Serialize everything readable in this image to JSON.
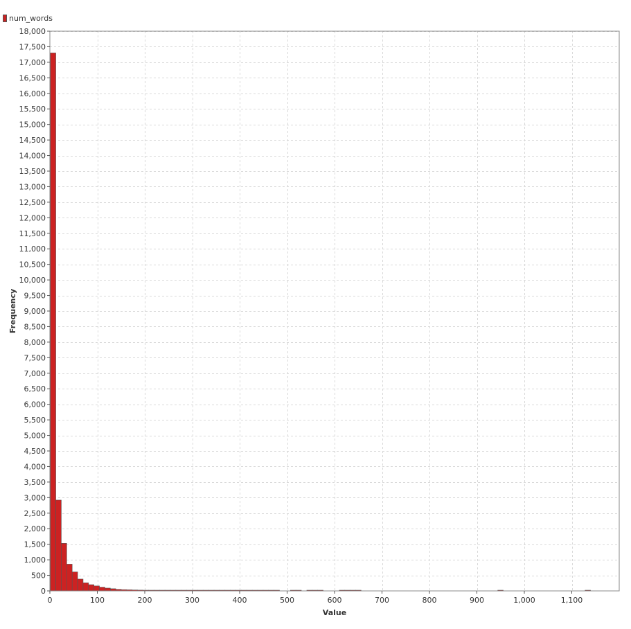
{
  "colors": {
    "bar": "#cc2222",
    "bar_stroke": "#555555",
    "grid": "#d9d9d9",
    "frame": "#888888"
  },
  "chart_data": {
    "type": "bar",
    "subtype": "histogram",
    "title": "",
    "xlabel": "Value",
    "ylabel": "Frequency",
    "legend": {
      "placement": "top-left",
      "entries": [
        "num_words"
      ]
    },
    "grid": true,
    "xlim": [
      0,
      1200
    ],
    "ylim": [
      0,
      18000
    ],
    "bin_width": 11.5,
    "x_ticks": [
      0,
      100,
      200,
      300,
      400,
      500,
      600,
      700,
      800,
      900,
      1000,
      1100
    ],
    "x_tick_labels": [
      "0",
      "100",
      "200",
      "300",
      "400",
      "500",
      "600",
      "700",
      "800",
      "900",
      "1,000",
      "1,100"
    ],
    "y_ticks": [
      0,
      500,
      1000,
      1500,
      2000,
      2500,
      3000,
      3500,
      4000,
      4500,
      5000,
      5500,
      6000,
      6500,
      7000,
      7500,
      8000,
      8500,
      9000,
      9500,
      10000,
      10500,
      11000,
      11500,
      12000,
      12500,
      13000,
      13500,
      14000,
      14500,
      15000,
      15500,
      16000,
      16500,
      17000,
      17500,
      18000
    ],
    "y_tick_labels": [
      "0",
      "500",
      "1,000",
      "1,500",
      "2,000",
      "2,500",
      "3,000",
      "3,500",
      "4,000",
      "4,500",
      "5,000",
      "5,500",
      "6,000",
      "6,500",
      "7,000",
      "7,500",
      "8,000",
      "8,500",
      "9,000",
      "9,500",
      "10,000",
      "10,500",
      "11,000",
      "11,500",
      "12,000",
      "12,500",
      "13,000",
      "13,500",
      "14,000",
      "14,500",
      "15,000",
      "15,500",
      "16,000",
      "16,500",
      "17,000",
      "17,500",
      "18,000"
    ],
    "series": [
      {
        "name": "num_words",
        "bins": [
          {
            "x0": 1,
            "x1": 12.5,
            "value": 17300
          },
          {
            "x0": 12.5,
            "x1": 24,
            "value": 2920
          },
          {
            "x0": 24,
            "x1": 35.5,
            "value": 1530
          },
          {
            "x0": 35.5,
            "x1": 47,
            "value": 860
          },
          {
            "x0": 47,
            "x1": 58.5,
            "value": 610
          },
          {
            "x0": 58.5,
            "x1": 70,
            "value": 380
          },
          {
            "x0": 70,
            "x1": 81.5,
            "value": 260
          },
          {
            "x0": 81.5,
            "x1": 93,
            "value": 200
          },
          {
            "x0": 93,
            "x1": 104.5,
            "value": 160
          },
          {
            "x0": 104.5,
            "x1": 116,
            "value": 120
          },
          {
            "x0": 116,
            "x1": 127.5,
            "value": 90
          },
          {
            "x0": 127.5,
            "x1": 139,
            "value": 70
          },
          {
            "x0": 139,
            "x1": 150.5,
            "value": 50
          },
          {
            "x0": 150.5,
            "x1": 162,
            "value": 40
          },
          {
            "x0": 162,
            "x1": 173.5,
            "value": 35
          },
          {
            "x0": 173.5,
            "x1": 185,
            "value": 30
          },
          {
            "x0": 185,
            "x1": 196.5,
            "value": 25
          },
          {
            "x0": 196.5,
            "x1": 208,
            "value": 20
          },
          {
            "x0": 208,
            "x1": 219.5,
            "value": 15
          },
          {
            "x0": 219.5,
            "x1": 231,
            "value": 12
          },
          {
            "x0": 231,
            "x1": 242.5,
            "value": 10
          },
          {
            "x0": 242.5,
            "x1": 254,
            "value": 8
          },
          {
            "x0": 254,
            "x1": 265.5,
            "value": 7
          },
          {
            "x0": 265.5,
            "x1": 277,
            "value": 6
          },
          {
            "x0": 277,
            "x1": 288.5,
            "value": 5
          },
          {
            "x0": 288.5,
            "x1": 300,
            "value": 5
          },
          {
            "x0": 300,
            "x1": 311.5,
            "value": 4
          },
          {
            "x0": 311.5,
            "x1": 323,
            "value": 4
          },
          {
            "x0": 323,
            "x1": 334.5,
            "value": 3
          },
          {
            "x0": 334.5,
            "x1": 346,
            "value": 3
          },
          {
            "x0": 346,
            "x1": 357.5,
            "value": 3
          },
          {
            "x0": 357.5,
            "x1": 369,
            "value": 3
          },
          {
            "x0": 369,
            "x1": 380.5,
            "value": 2
          },
          {
            "x0": 380.5,
            "x1": 392,
            "value": 2
          },
          {
            "x0": 392,
            "x1": 403.5,
            "value": 2
          },
          {
            "x0": 403.5,
            "x1": 415,
            "value": 2
          },
          {
            "x0": 415,
            "x1": 426.5,
            "value": 2
          },
          {
            "x0": 426.5,
            "x1": 438,
            "value": 2
          },
          {
            "x0": 438,
            "x1": 449.5,
            "value": 2
          },
          {
            "x0": 449.5,
            "x1": 461,
            "value": 1
          },
          {
            "x0": 461,
            "x1": 472.5,
            "value": 1
          },
          {
            "x0": 472.5,
            "x1": 484,
            "value": 1
          },
          {
            "x0": 507,
            "x1": 518.5,
            "value": 1
          },
          {
            "x0": 518.5,
            "x1": 530,
            "value": 1
          },
          {
            "x0": 541.5,
            "x1": 553,
            "value": 1
          },
          {
            "x0": 553,
            "x1": 564.5,
            "value": 1
          },
          {
            "x0": 564.5,
            "x1": 576,
            "value": 1
          },
          {
            "x0": 610,
            "x1": 621.5,
            "value": 1
          },
          {
            "x0": 621.5,
            "x1": 633,
            "value": 1
          },
          {
            "x0": 633,
            "x1": 644.5,
            "value": 1
          },
          {
            "x0": 644.5,
            "x1": 656,
            "value": 1
          },
          {
            "x0": 944,
            "x1": 955.5,
            "value": 1
          },
          {
            "x0": 1128,
            "x1": 1139.5,
            "value": 1
          }
        ]
      }
    ]
  }
}
